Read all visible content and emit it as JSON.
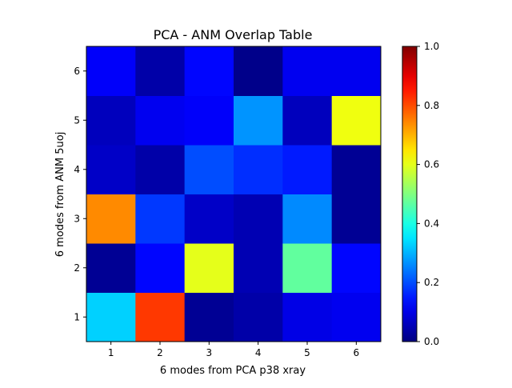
{
  "chart_data": {
    "type": "heatmap",
    "title": "PCA - ANM Overlap Table",
    "xlabel": "6 modes from PCA p38 xray",
    "ylabel": "6 modes from ANM 5uoj",
    "x_categories": [
      "1",
      "2",
      "3",
      "4",
      "5",
      "6"
    ],
    "y_categories": [
      "1",
      "2",
      "3",
      "4",
      "5",
      "6"
    ],
    "values": [
      [
        0.33,
        0.82,
        0.02,
        0.04,
        0.1,
        0.11
      ],
      [
        0.02,
        0.13,
        0.6,
        0.05,
        0.47,
        0.13
      ],
      [
        0.74,
        0.18,
        0.07,
        0.05,
        0.26,
        0.02
      ],
      [
        0.07,
        0.04,
        0.2,
        0.17,
        0.15,
        0.02
      ],
      [
        0.06,
        0.11,
        0.12,
        0.27,
        0.06,
        0.61
      ],
      [
        0.12,
        0.04,
        0.13,
        0.01,
        0.11,
        0.11
      ]
    ],
    "colormap": "jet",
    "colorbar": {
      "range": [
        0.0,
        1.0
      ],
      "ticks": [
        "0.0",
        "0.2",
        "0.4",
        "0.6",
        "0.8",
        "1.0"
      ]
    },
    "grid": false
  }
}
